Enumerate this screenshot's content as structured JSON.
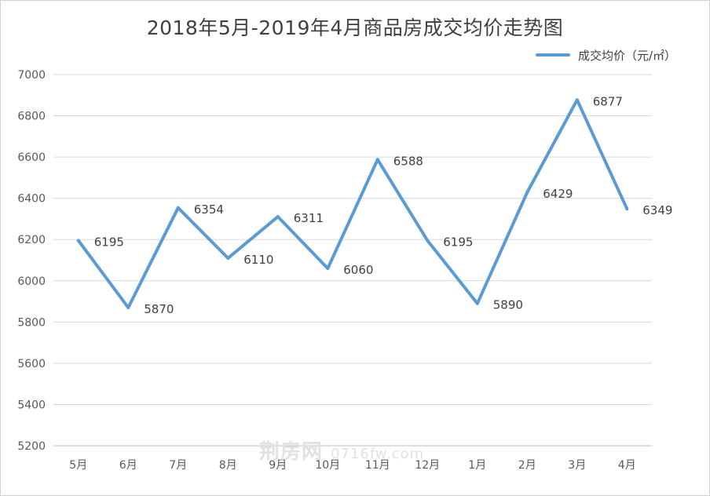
{
  "chart_data": {
    "type": "line",
    "title": "2018年5月-2019年4月商品房成交均价走势图",
    "categories": [
      "5月",
      "6月",
      "7月",
      "8月",
      "9月",
      "10月",
      "11月",
      "12月",
      "1月",
      "2月",
      "3月",
      "4月"
    ],
    "series": [
      {
        "name": "成交均价（元/㎡）",
        "values": [
          6195,
          5870,
          6354,
          6110,
          6311,
          6060,
          6588,
          6195,
          5890,
          6429,
          6877,
          6349
        ]
      }
    ],
    "ylim": [
      5200,
      7000
    ],
    "yticks": [
      5200,
      5400,
      5600,
      5800,
      6000,
      6200,
      6400,
      6600,
      6800,
      7000
    ],
    "grid": true,
    "legend": "top-right",
    "colors": {
      "line": "#5b9bd5"
    }
  },
  "watermark": {
    "brand": "荆房网",
    "site": "0716fw.com"
  }
}
